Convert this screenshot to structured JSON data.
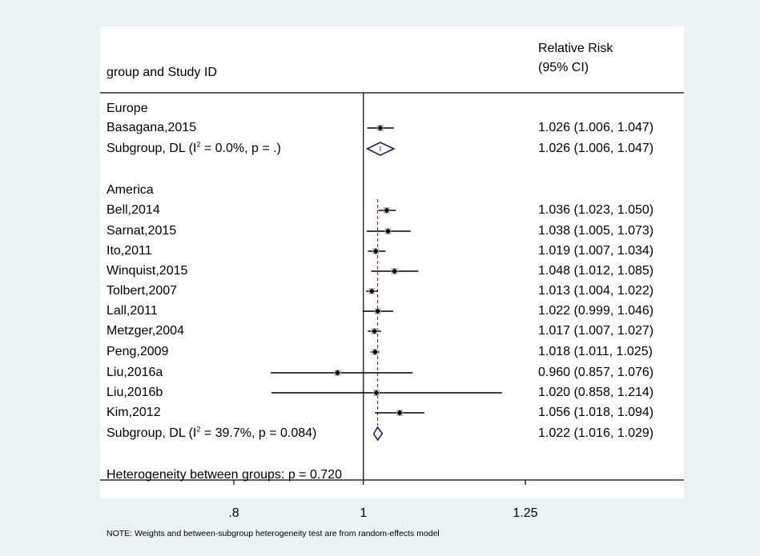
{
  "header": {
    "left": "group and Study ID",
    "right_line1": "Relative Risk",
    "right_line2": "(95% CI)"
  },
  "chart_data": {
    "type": "forest",
    "x_ticks": [
      {
        "value": 0.8,
        "label": ".8"
      },
      {
        "value": 1,
        "label": "1"
      },
      {
        "value": 1.25,
        "label": "1.25"
      }
    ],
    "null_line": 1,
    "xlim": [
      0.675,
      1.5
    ],
    "groups": [
      {
        "name": "Europe",
        "studies": [
          {
            "label": "Basagana,2015",
            "rr": 1.026,
            "lo": 1.006,
            "hi": 1.047,
            "ci_text": "1.026 (1.006, 1.047)"
          }
        ],
        "subgroup": {
          "label_pre": "Subgroup, DL (I",
          "sup": "2",
          "label_post": " = 0.0%, p = .)",
          "rr": 1.026,
          "lo": 1.006,
          "hi": 1.047,
          "ci_text": "1.026 (1.006, 1.047)"
        }
      },
      {
        "name": "America",
        "studies": [
          {
            "label": "Bell,2014",
            "rr": 1.036,
            "lo": 1.023,
            "hi": 1.05,
            "ci_text": "1.036 (1.023, 1.050)"
          },
          {
            "label": "Sarnat,2015",
            "rr": 1.038,
            "lo": 1.005,
            "hi": 1.073,
            "ci_text": "1.038 (1.005, 1.073)"
          },
          {
            "label": "Ito,2011",
            "rr": 1.019,
            "lo": 1.007,
            "hi": 1.034,
            "ci_text": "1.019 (1.007, 1.034)"
          },
          {
            "label": "Winquist,2015",
            "rr": 1.048,
            "lo": 1.012,
            "hi": 1.085,
            "ci_text": "1.048 (1.012, 1.085)"
          },
          {
            "label": "Tolbert,2007",
            "rr": 1.013,
            "lo": 1.004,
            "hi": 1.022,
            "ci_text": "1.013 (1.004, 1.022)"
          },
          {
            "label": "Lall,2011",
            "rr": 1.022,
            "lo": 0.999,
            "hi": 1.046,
            "ci_text": "1.022 (0.999, 1.046)"
          },
          {
            "label": "Metzger,2004",
            "rr": 1.017,
            "lo": 1.007,
            "hi": 1.027,
            "ci_text": "1.017 (1.007, 1.027)"
          },
          {
            "label": "Peng,2009",
            "rr": 1.018,
            "lo": 1.011,
            "hi": 1.025,
            "ci_text": "1.018 (1.011, 1.025)"
          },
          {
            "label": "Liu,2016a",
            "rr": 0.96,
            "lo": 0.857,
            "hi": 1.076,
            "ci_text": "0.960 (0.857, 1.076)"
          },
          {
            "label": "Liu,2016b",
            "rr": 1.02,
            "lo": 0.858,
            "hi": 1.214,
            "ci_text": "1.020 (0.858, 1.214)"
          },
          {
            "label": "Kim,2012",
            "rr": 1.056,
            "lo": 1.018,
            "hi": 1.094,
            "ci_text": "1.056 (1.018, 1.094)"
          }
        ],
        "subgroup": {
          "label_pre": "Subgroup, DL (I",
          "sup": "2",
          "label_post": " = 39.7%, p = 0.084)",
          "rr": 1.022,
          "lo": 1.016,
          "hi": 1.029,
          "ci_text": "1.022 (1.016, 1.029)"
        }
      }
    ],
    "heterogeneity_text": "Heterogeneity between groups: p = 0.720",
    "colors": {
      "diamond": "#1f1f6e",
      "dashed": "#8a2b2b",
      "marker": "#000000"
    }
  },
  "note": "NOTE: Weights and between-subgroup heterogeneity test are from random-effects model"
}
